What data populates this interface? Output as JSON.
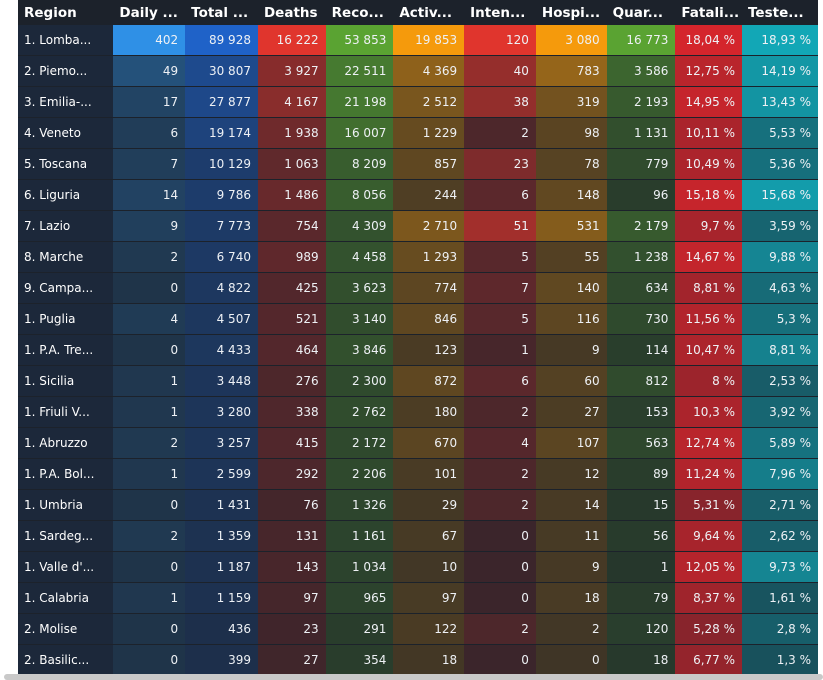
{
  "table": {
    "columns": [
      "Region",
      "Daily ...",
      "Total ...",
      "Deaths",
      "Reco...",
      "Activ...",
      "Inten...",
      "Hospi...",
      "Quar...",
      "Fatali...",
      "Teste..."
    ],
    "rows": [
      [
        "1. Lomba...",
        "402",
        "89 928",
        "16 222",
        "53 853",
        "19 853",
        "120",
        "3 080",
        "16 773",
        "18,04 %",
        "18,93 %"
      ],
      [
        "2. Piemo...",
        "49",
        "30 807",
        "3 927",
        "22 511",
        "4 369",
        "40",
        "783",
        "3 586",
        "12,75 %",
        "14,19 %"
      ],
      [
        "3. Emilia-...",
        "17",
        "27 877",
        "4 167",
        "21 198",
        "2 512",
        "38",
        "319",
        "2 193",
        "14,95 %",
        "13,43 %"
      ],
      [
        "4. Veneto",
        "6",
        "19 174",
        "1 938",
        "16 007",
        "1 229",
        "2",
        "98",
        "1 131",
        "10,11 %",
        "5,53 %"
      ],
      [
        "5. Toscana",
        "7",
        "10 129",
        "1 063",
        "8 209",
        "857",
        "23",
        "78",
        "779",
        "10,49 %",
        "5,36 %"
      ],
      [
        "6. Liguria",
        "14",
        "9 786",
        "1 486",
        "8 056",
        "244",
        "6",
        "148",
        "96",
        "15,18 %",
        "15,68 %"
      ],
      [
        "7. Lazio",
        "9",
        "7 773",
        "754",
        "4 309",
        "2 710",
        "51",
        "531",
        "2 179",
        "9,7 %",
        "3,59 %"
      ],
      [
        "8. Marche",
        "2",
        "6 740",
        "989",
        "4 458",
        "1 293",
        "5",
        "55",
        "1 238",
        "14,67 %",
        "9,88 %"
      ],
      [
        "9. Campa...",
        "0",
        "4 822",
        "425",
        "3 623",
        "774",
        "7",
        "140",
        "634",
        "8,81 %",
        "4,63 %"
      ],
      [
        "1. Puglia",
        "4",
        "4 507",
        "521",
        "3 140",
        "846",
        "5",
        "116",
        "730",
        "11,56 %",
        "5,3 %"
      ],
      [
        "1. P.A. Tre...",
        "0",
        "4 433",
        "464",
        "3 846",
        "123",
        "1",
        "9",
        "114",
        "10,47 %",
        "8,81 %"
      ],
      [
        "1. Sicilia",
        "1",
        "3 448",
        "276",
        "2 300",
        "872",
        "6",
        "60",
        "812",
        "8 %",
        "2,53 %"
      ],
      [
        "1. Friuli V...",
        "1",
        "3 280",
        "338",
        "2 762",
        "180",
        "2",
        "27",
        "153",
        "10,3 %",
        "3,92 %"
      ],
      [
        "1. Abruzzo",
        "2",
        "3 257",
        "415",
        "2 172",
        "670",
        "4",
        "107",
        "563",
        "12,74 %",
        "5,89 %"
      ],
      [
        "1. P.A. Bol...",
        "1",
        "2 599",
        "292",
        "2 206",
        "101",
        "2",
        "12",
        "89",
        "11,24 %",
        "7,96 %"
      ],
      [
        "1. Umbria",
        "0",
        "1 431",
        "76",
        "1 326",
        "29",
        "2",
        "14",
        "15",
        "5,31 %",
        "2,71 %"
      ],
      [
        "1. Sardeg...",
        "2",
        "1 359",
        "131",
        "1 161",
        "67",
        "0",
        "11",
        "56",
        "9,64 %",
        "2,62 %"
      ],
      [
        "1. Valle d'...",
        "0",
        "1 187",
        "143",
        "1 034",
        "10",
        "0",
        "9",
        "1",
        "12,05 %",
        "9,73 %"
      ],
      [
        "1. Calabria",
        "1",
        "1 159",
        "97",
        "965",
        "97",
        "0",
        "18",
        "79",
        "8,37 %",
        "1,61 %"
      ],
      [
        "2. Molise",
        "0",
        "436",
        "23",
        "291",
        "122",
        "2",
        "2",
        "120",
        "5,28 %",
        "2,8 %"
      ],
      [
        "2. Basilic...",
        "0",
        "399",
        "27",
        "354",
        "18",
        "0",
        "0",
        "18",
        "6,77 %",
        "1,3 %"
      ]
    ]
  },
  "colors": {
    "background": "#1c222b",
    "daily": "#2f90e6",
    "total": "#1f62c8",
    "deaths": "#e0352d",
    "recovered": "#5aa332",
    "active": "#f59a0c",
    "intensive": "#e0352d",
    "hospital": "#f59a0c",
    "quarantine": "#5aa332",
    "fatality": "#d4252c",
    "tested": "#12a7b6"
  }
}
